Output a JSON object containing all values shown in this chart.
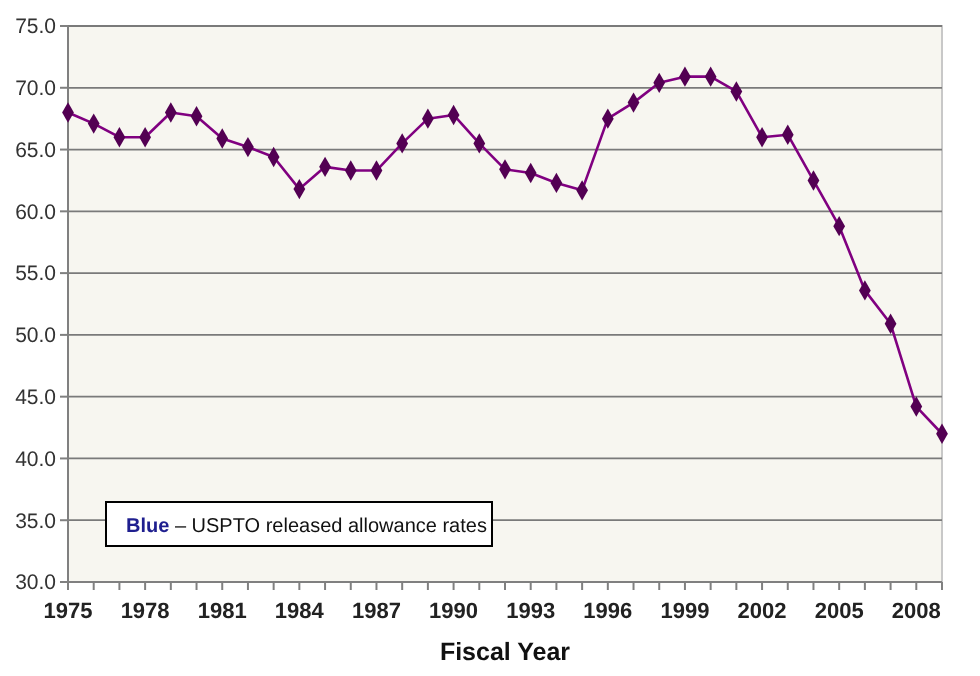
{
  "chart_data": {
    "type": "line",
    "xlabel": "Fiscal Year",
    "x": [
      1975,
      1976,
      1977,
      1978,
      1979,
      1980,
      1981,
      1982,
      1983,
      1984,
      1985,
      1986,
      1987,
      1988,
      1989,
      1990,
      1991,
      1992,
      1993,
      1994,
      1995,
      1996,
      1997,
      1998,
      1999,
      2000,
      2001,
      2002,
      2003,
      2004,
      2005,
      2006,
      2007,
      2008,
      2009
    ],
    "series": [
      {
        "color": "#800080",
        "values": [
          68.0,
          67.1,
          66.0,
          66.0,
          68.0,
          67.7,
          65.9,
          65.2,
          64.4,
          61.8,
          63.6,
          63.3,
          63.3,
          65.5,
          67.5,
          67.8,
          65.5,
          63.4,
          63.1,
          62.3,
          61.7,
          67.5,
          68.8,
          70.4,
          70.9,
          70.9,
          69.7,
          66.0,
          66.2,
          62.5,
          58.8,
          53.6,
          50.9,
          44.2,
          42.0
        ]
      }
    ],
    "xlim": [
      1975,
      2009
    ],
    "xticks": [
      1975,
      1978,
      1981,
      1984,
      1987,
      1990,
      1993,
      1996,
      1999,
      2002,
      2005,
      2008
    ],
    "ylim": [
      30,
      75
    ],
    "yticks": [
      {
        "value": 30,
        "label": "30.0"
      },
      {
        "value": 35,
        "label": "35.0"
      },
      {
        "value": 40,
        "label": "40.0"
      },
      {
        "value": 45,
        "label": "45.0"
      },
      {
        "value": 50,
        "label": "50.0"
      },
      {
        "value": 55,
        "label": "55.0"
      },
      {
        "value": 60,
        "label": "60.0"
      },
      {
        "value": 65,
        "label": "65.0"
      },
      {
        "value": 70,
        "label": "70.0"
      },
      {
        "value": 75,
        "label": "75.0"
      }
    ],
    "grid": "y",
    "marker": "diamond",
    "line_style": "solid",
    "annotations": [
      "Blue – USPTO released allowance rates"
    ]
  }
}
